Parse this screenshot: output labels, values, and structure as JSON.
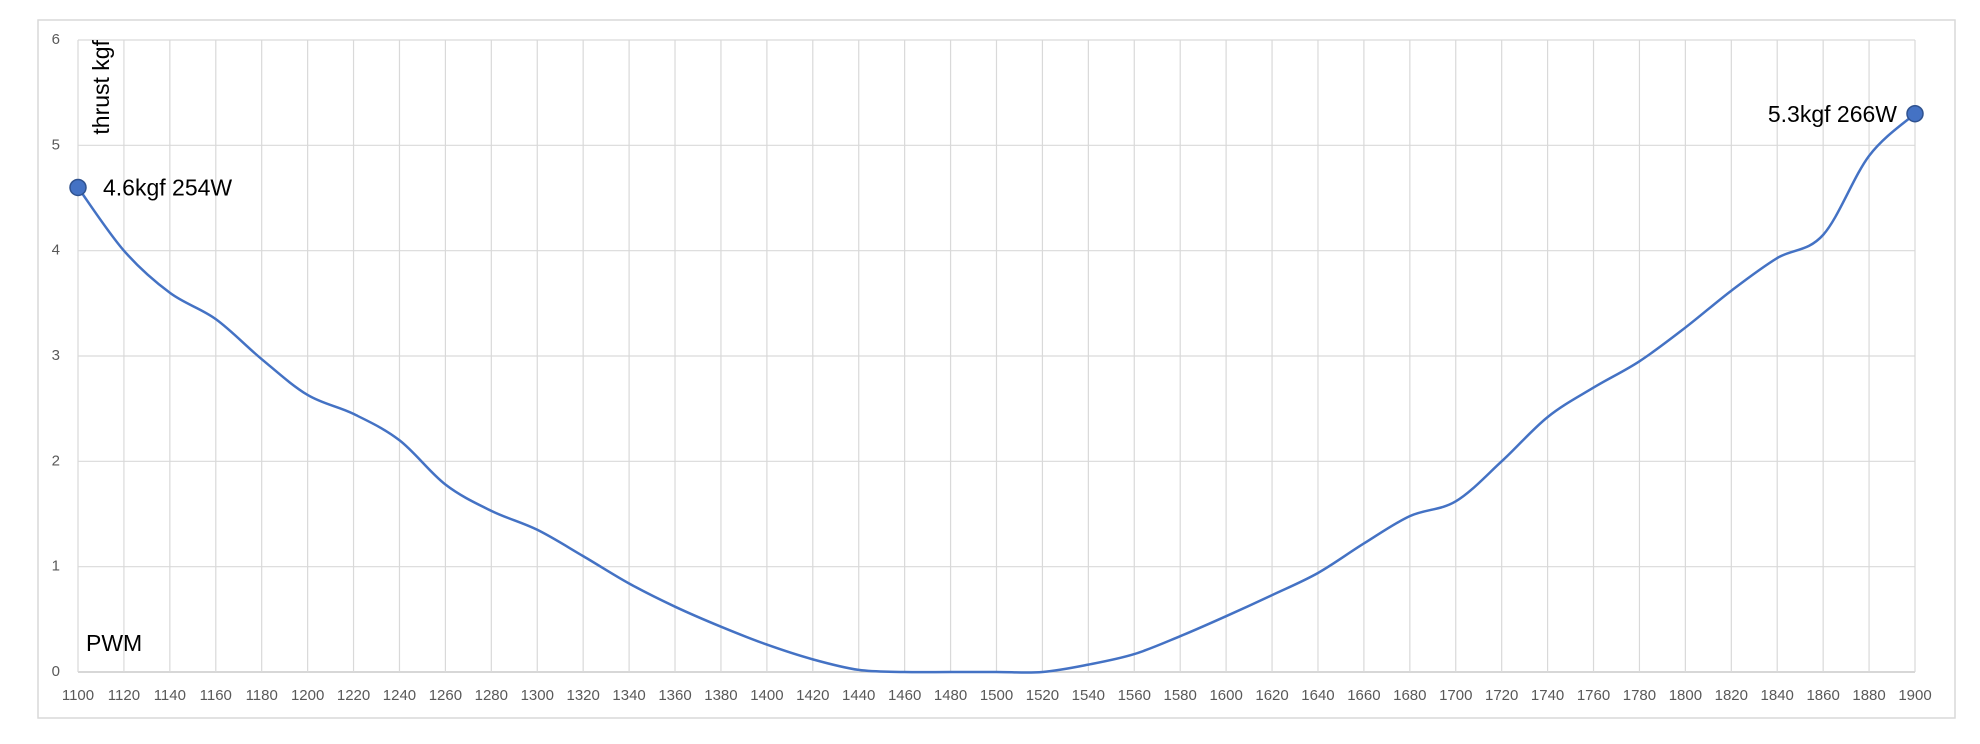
{
  "chart_data": {
    "type": "line",
    "x_label": "PWM",
    "y_label": "thrust  kgf",
    "x": [
      1100,
      1120,
      1140,
      1160,
      1180,
      1200,
      1220,
      1240,
      1260,
      1280,
      1300,
      1320,
      1340,
      1360,
      1380,
      1400,
      1420,
      1440,
      1460,
      1480,
      1500,
      1520,
      1540,
      1560,
      1580,
      1600,
      1620,
      1640,
      1660,
      1680,
      1700,
      1720,
      1740,
      1760,
      1780,
      1800,
      1820,
      1840,
      1860,
      1880,
      1900
    ],
    "series": [
      {
        "color": "#4472c4",
        "values": [
          4.6,
          4.0,
          3.6,
          3.35,
          2.97,
          2.63,
          2.45,
          2.2,
          1.78,
          1.53,
          1.35,
          1.1,
          0.84,
          0.62,
          0.43,
          0.26,
          0.12,
          0.02,
          0,
          0,
          0,
          0,
          0.07,
          0.17,
          0.34,
          0.53,
          0.73,
          0.94,
          1.22,
          1.48,
          1.62,
          2.0,
          2.42,
          2.7,
          2.95,
          3.27,
          3.62,
          3.93,
          4.15,
          4.9,
          5.3
        ]
      }
    ],
    "annotations": [
      "4.6kgf 254W",
      "5.3kgf 266W"
    ],
    "xlim": [
      1100,
      1900
    ],
    "xticks": [
      1100,
      1120,
      1140,
      1160,
      1180,
      1200,
      1220,
      1240,
      1260,
      1280,
      1300,
      1320,
      1340,
      1360,
      1380,
      1400,
      1420,
      1440,
      1460,
      1480,
      1500,
      1520,
      1540,
      1560,
      1580,
      1600,
      1620,
      1640,
      1660,
      1680,
      1700,
      1720,
      1740,
      1760,
      1780,
      1800,
      1820,
      1840,
      1860,
      1880,
      1900
    ],
    "ylim": [
      0,
      6
    ],
    "yticks": [
      0,
      1,
      2,
      3,
      4,
      5,
      6
    ],
    "grid": true
  }
}
